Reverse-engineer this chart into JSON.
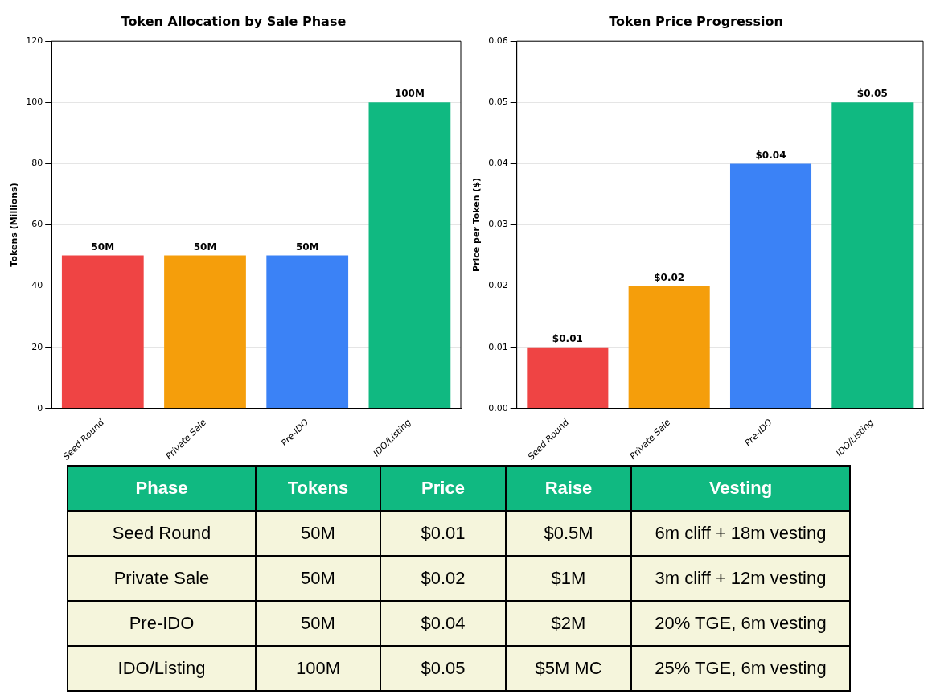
{
  "chart_data": [
    {
      "type": "bar",
      "title": "Token Allocation by Sale Phase",
      "ylabel": "Tokens (Millions)",
      "categories": [
        "Seed Round",
        "Private Sale",
        "Pre-IDO",
        "IDO/Listing"
      ],
      "values": [
        50,
        50,
        50,
        100
      ],
      "colors": [
        "#ef4444",
        "#f59e0b",
        "#3b82f6",
        "#10b981"
      ],
      "value_labels": [
        "50M",
        "50M",
        "50M",
        "100M"
      ],
      "ylim": [
        0,
        120
      ],
      "yticks": [
        0,
        20,
        40,
        60,
        80,
        100,
        120
      ],
      "grid": "y",
      "legend": false
    },
    {
      "type": "bar",
      "title": "Token Price Progression",
      "ylabel": "Price per Token ($)",
      "categories": [
        "Seed Round",
        "Private Sale",
        "Pre-IDO",
        "IDO/Listing"
      ],
      "values": [
        0.01,
        0.02,
        0.04,
        0.05
      ],
      "colors": [
        "#ef4444",
        "#f59e0b",
        "#3b82f6",
        "#10b981"
      ],
      "value_labels": [
        "$0.01",
        "$0.02",
        "$0.04",
        "$0.05"
      ],
      "ylim": [
        0,
        0.06
      ],
      "yticks": [
        {
          "value": 0,
          "label": "0.00"
        },
        {
          "value": 0.01,
          "label": "0.01"
        },
        {
          "value": 0.02,
          "label": "0.02"
        },
        {
          "value": 0.03,
          "label": "0.03"
        },
        {
          "value": 0.04,
          "label": "0.04"
        },
        {
          "value": 0.05,
          "label": "0.05"
        },
        {
          "value": 0.06,
          "label": "0.06"
        }
      ],
      "grid": "y",
      "legend": false
    },
    {
      "type": "other",
      "categories": [
        "Phase",
        "Tokens",
        "Price",
        "Raise",
        "Vesting"
      ],
      "cell_labels": [
        [
          "Seed Round",
          "50M",
          "$0.01",
          "$0.5M",
          "6m cliff + 18m vesting"
        ],
        [
          "Private Sale",
          "50M",
          "$0.02",
          "$1M",
          "3m cliff + 12m vesting"
        ],
        [
          "Pre-IDO",
          "50M",
          "$0.04",
          "$2M",
          "20% TGE, 6m vesting"
        ],
        [
          "IDO/Listing",
          "100M",
          "$0.05",
          "$5M MC",
          "25% TGE, 6m vesting"
        ]
      ]
    }
  ]
}
